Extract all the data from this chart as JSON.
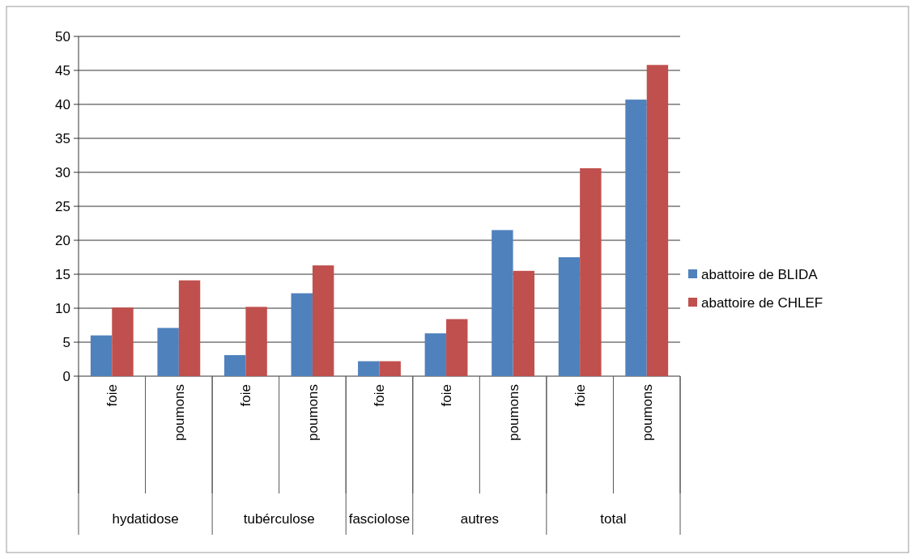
{
  "chart_data": {
    "type": "bar",
    "categories": [
      "foie",
      "poumons",
      "foie",
      "poumons",
      "foie",
      "foie",
      "poumons",
      "foie",
      "poumons"
    ],
    "series": [
      {
        "name": "abattoire de BLIDA",
        "color": "#4f81bd",
        "values": [
          6,
          7.1,
          3.1,
          12.2,
          2.2,
          6.3,
          21.5,
          17.5,
          40.7
        ]
      },
      {
        "name": "abattoire de CHLEF",
        "color": "#c0504d",
        "values": [
          10.1,
          14.1,
          10.2,
          16.3,
          2.2,
          8.4,
          15.5,
          30.6,
          45.8
        ]
      }
    ],
    "annotations": [
      "hydatidose",
      "tubérculose",
      "fasciolose",
      "autres",
      "total"
    ],
    "ylim": [
      0,
      50
    ],
    "yticks": [
      0,
      5,
      10,
      15,
      20,
      25,
      30,
      35,
      40,
      45,
      50
    ],
    "grid": "y",
    "legend": "right"
  }
}
